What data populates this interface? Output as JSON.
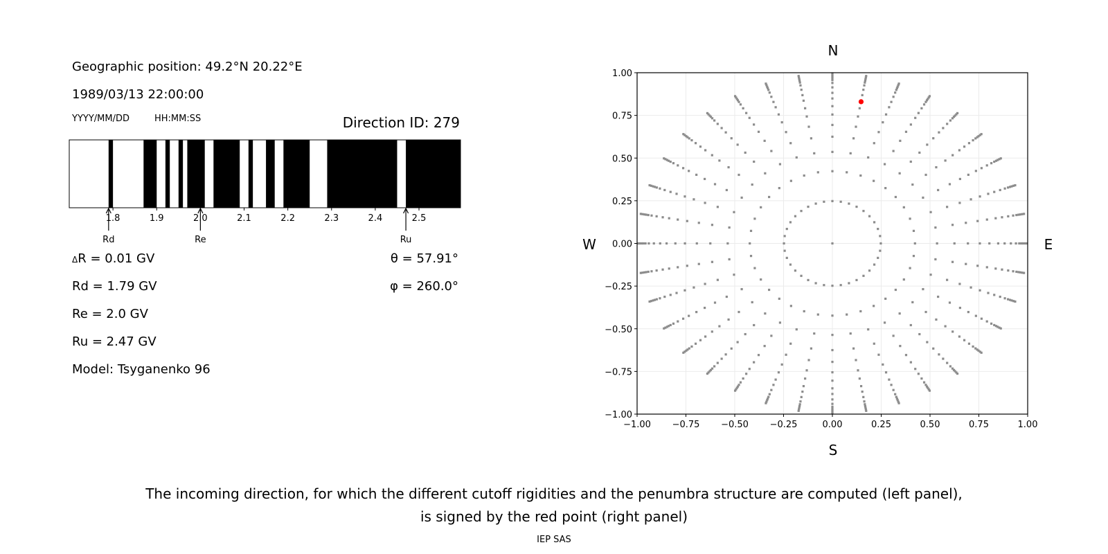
{
  "info": {
    "geo_position": "Geographic position: 49.2°N 20.22°E",
    "datetime": "1989/03/13 22:00:00",
    "date_format": "YYYY/MM/DD",
    "time_format": "HH:MM:SS",
    "direction_id": "Direction ID: 279",
    "delta_r_symbol": "Δ",
    "delta_r": "R = 0.01 GV",
    "rd": "Rd = 1.79 GV",
    "re": "Re = 2.0 GV",
    "ru": "Ru = 2.47 GV",
    "model": "Model: Tsyganenko 96",
    "theta": "θ = 57.91°",
    "phi": "φ = 260.0°"
  },
  "caption": {
    "line1": "The incoming direction, for which the different cutoff rigidities and the penumbra structure are computed (left panel),",
    "line2": "is signed by the red point (right panel)",
    "credit": "IEP SAS"
  },
  "chart_data": [
    {
      "type": "bar",
      "subtype": "penumbra-barcode",
      "xlim": [
        1.7,
        2.595
      ],
      "xticks": [
        1.8,
        1.9,
        2.0,
        2.1,
        2.2,
        2.3,
        2.4,
        2.5
      ],
      "xtick_labels": [
        "1.8",
        "1.9",
        "2.0",
        "2.1",
        "2.2",
        "2.3",
        "2.4",
        "2.5"
      ],
      "step": 0.01,
      "background_color": "#ffffff",
      "forbidden_color": "#000000",
      "forbidden_intervals": [
        [
          1.79,
          1.8
        ],
        [
          1.87,
          1.9
        ],
        [
          1.92,
          1.93
        ],
        [
          1.95,
          1.96
        ],
        [
          1.97,
          2.01
        ],
        [
          2.03,
          2.09
        ],
        [
          2.11,
          2.12
        ],
        [
          2.15,
          2.17
        ],
        [
          2.19,
          2.25
        ],
        [
          2.29,
          2.45
        ],
        [
          2.47,
          2.595
        ]
      ],
      "markers": [
        {
          "label": "Rd",
          "value": 1.79
        },
        {
          "label": "Re",
          "value": 2.0
        },
        {
          "label": "Ru",
          "value": 2.47
        }
      ]
    },
    {
      "type": "scatter",
      "xlim": [
        -1.0,
        1.0
      ],
      "ylim": [
        -1.0,
        1.0
      ],
      "xticks": [
        -1.0,
        -0.75,
        -0.5,
        -0.25,
        0.0,
        0.25,
        0.5,
        0.75,
        1.0
      ],
      "yticks": [
        -1.0,
        -0.75,
        -0.5,
        -0.25,
        0.0,
        0.25,
        0.5,
        0.75,
        1.0
      ],
      "xtick_labels": [
        "−1.00",
        "−0.75",
        "−0.50",
        "−0.25",
        "0.00",
        "0.25",
        "0.50",
        "0.75",
        "1.00"
      ],
      "ytick_labels": [
        "−1.00",
        "−0.75",
        "−0.50",
        "−0.25",
        "0.00",
        "0.25",
        "0.50",
        "0.75",
        "1.00"
      ],
      "grid": true,
      "compass": {
        "north": "N",
        "south": "S",
        "west": "W",
        "east": "E"
      },
      "direction_grid": {
        "center_point": [
          0.0,
          0.0
        ],
        "azimuth_step_deg": 10,
        "radii": [
          0.248,
          0.423,
          0.536,
          0.625,
          0.694,
          0.755,
          0.804,
          0.849,
          0.882,
          0.914,
          0.94,
          0.957,
          0.968,
          0.977,
          0.987,
          0.996
        ],
        "color": "#8c8c8c"
      },
      "selected_point": {
        "x": 0.147,
        "y": 0.83,
        "color": "#ff0000"
      }
    }
  ]
}
